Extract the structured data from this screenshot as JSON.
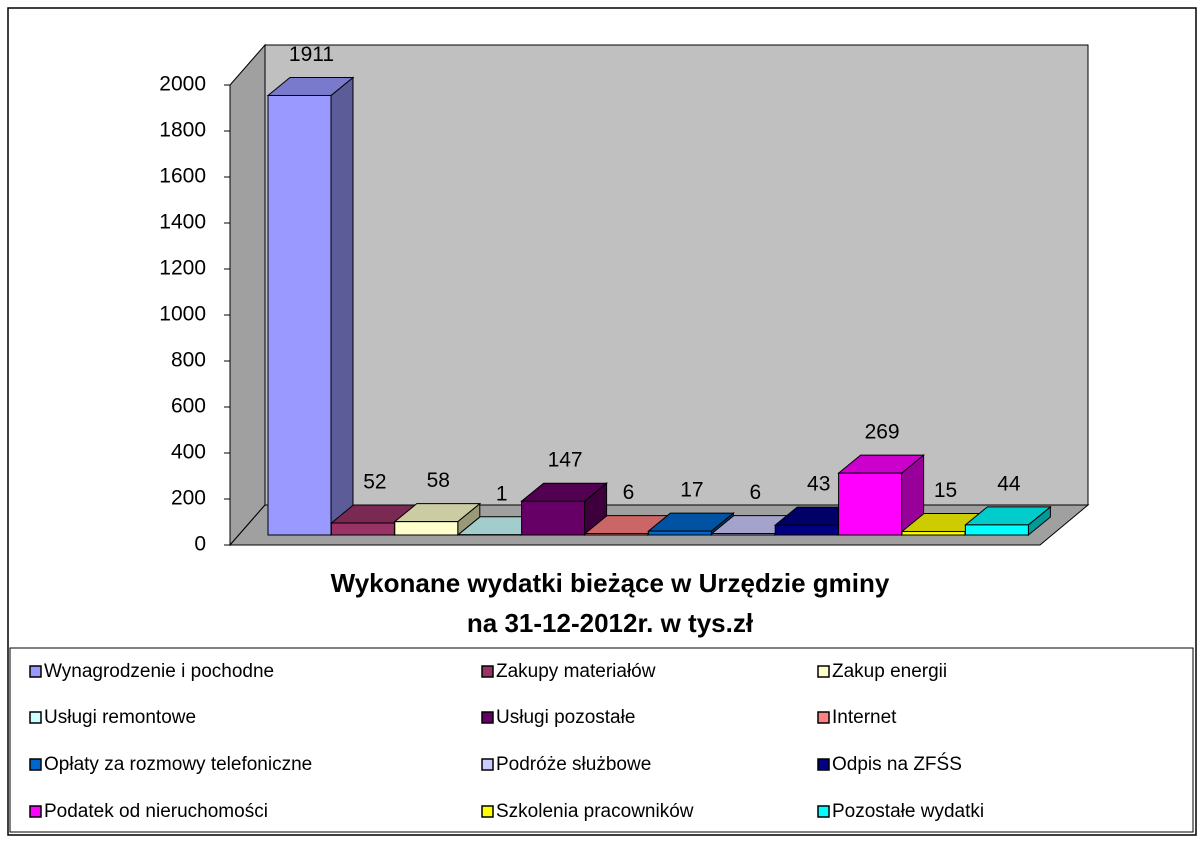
{
  "chart_data": {
    "type": "bar3d",
    "title": [
      "Wykonane wydatki bieżące w Urzędzie gminy",
      "na 31-12-2012r. w tys.zł"
    ],
    "ylim": [
      0,
      2000
    ],
    "yticks": [
      0,
      200,
      400,
      600,
      800,
      1000,
      1200,
      1400,
      1600,
      1800,
      2000
    ],
    "legend": "bottom",
    "series": [
      {
        "name": "Wynagrodzenie i pochodne",
        "color": "#9999ff",
        "values": [
          1911
        ]
      },
      {
        "name": "Zakupy materiałów",
        "color": "#993366",
        "values": [
          52
        ]
      },
      {
        "name": "Zakup energii",
        "color": "#ffffcc",
        "values": [
          58
        ]
      },
      {
        "name": "Usługi remontowe",
        "color": "#ccffff",
        "values": [
          1
        ]
      },
      {
        "name": "Usługi pozostałe",
        "color": "#660066",
        "values": [
          147
        ]
      },
      {
        "name": "Internet",
        "color": "#ff8080",
        "values": [
          6
        ]
      },
      {
        "name": "Opłaty za rozmowy telefoniczne",
        "color": "#0066cc",
        "values": [
          17
        ]
      },
      {
        "name": "Podróże służbowe",
        "color": "#ccccff",
        "values": [
          6
        ]
      },
      {
        "name": "Odpis na ZFŚS",
        "color": "#000080",
        "values": [
          43
        ]
      },
      {
        "name": "Podatek od nieruchomości",
        "color": "#ff00ff",
        "values": [
          269
        ]
      },
      {
        "name": "Szkolenia pracowników",
        "color": "#ffff00",
        "values": [
          15
        ]
      },
      {
        "name": "Pozostałe wydatki",
        "color": "#00ffff",
        "values": [
          44
        ]
      }
    ]
  }
}
